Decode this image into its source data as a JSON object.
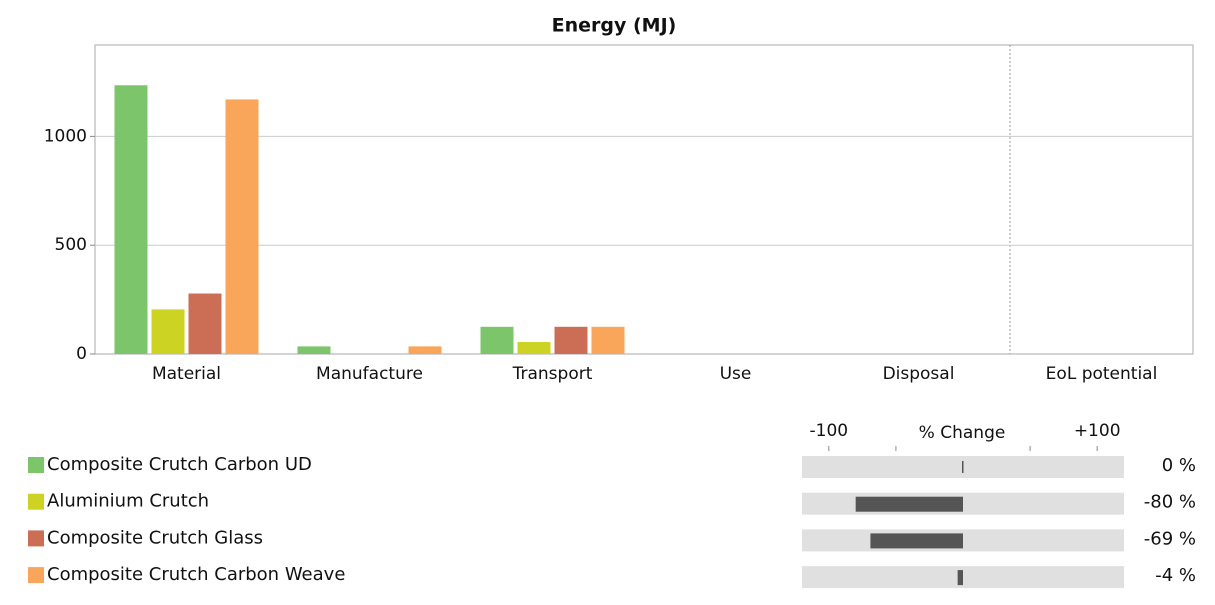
{
  "chart_data": {
    "type": "bar",
    "title": "Energy (MJ)",
    "categories": [
      "Material",
      "Manufacture",
      "Transport",
      "Use",
      "Disposal",
      "EoL potential"
    ],
    "series": [
      {
        "name": "Composite Crutch Carbon UD",
        "color": "#7dc56b",
        "values": [
          1235,
          35,
          125,
          0,
          0,
          0
        ]
      },
      {
        "name": "Aluminium Crutch",
        "color": "#cdd322",
        "values": [
          205,
          0,
          55,
          0,
          0,
          0
        ]
      },
      {
        "name": "Composite Crutch Glass",
        "color": "#cc6e56",
        "values": [
          278,
          0,
          125,
          0,
          0,
          0
        ]
      },
      {
        "name": "Composite Crutch Carbon Weave",
        "color": "#f9a65a",
        "values": [
          1170,
          35,
          125,
          0,
          0,
          0
        ]
      }
    ],
    "ylim": [
      0,
      1420
    ],
    "yticks": [
      0,
      500,
      1000
    ],
    "grid": true,
    "change": {
      "title": "% Change",
      "values": [
        0,
        -80,
        -69,
        -4
      ],
      "value_labels": [
        "0 %",
        "-80 %",
        "-69 %",
        "-4 %"
      ],
      "xlim": [
        -120,
        120
      ],
      "xticks": [
        -100,
        {
          "value": 100,
          "label": "+100"
        }
      ],
      "minor_xticks": [
        -50,
        50
      ],
      "color": "#555555"
    }
  }
}
